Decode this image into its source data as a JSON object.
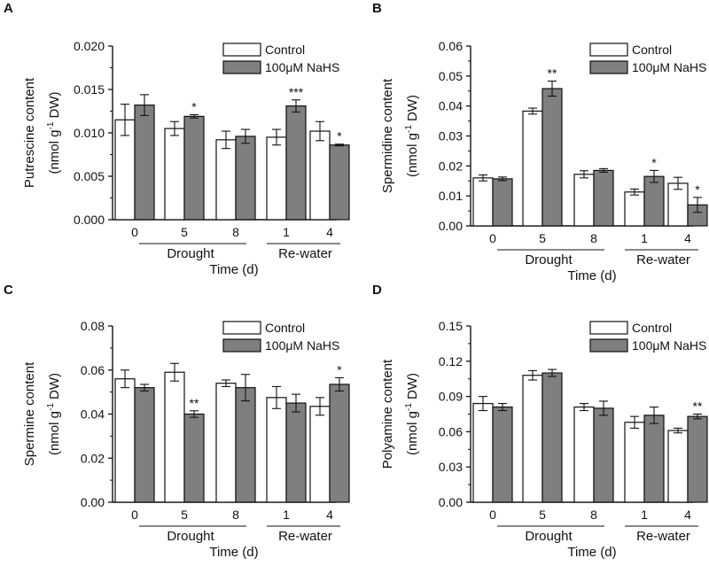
{
  "colors": {
    "control": "#ffffff",
    "nahs": "#7f7f7f",
    "stroke": "#111111"
  },
  "chart_data": [
    {
      "type": "bar",
      "panel": "A",
      "ylabel_main": "Putrescine content",
      "ylabel_unit_a": "(nmol g",
      "ylabel_unit_sup": "-1",
      "ylabel_unit_b": " DW)",
      "ylim": [
        0,
        0.02
      ],
      "yticks": [
        "0.000",
        "0.005",
        "0.010",
        "0.015",
        "0.020"
      ],
      "categories": [
        "0",
        "5",
        "8",
        "1",
        "4"
      ],
      "groups": [
        "Drought",
        "Re-water"
      ],
      "xlabel": "Time (d)",
      "series": [
        {
          "name": "Control",
          "values": [
            0.0115,
            0.0105,
            0.0092,
            0.0095,
            0.0102
          ],
          "errors": [
            0.0018,
            0.0008,
            0.001,
            0.0009,
            0.0011
          ],
          "stars": [
            "",
            "",
            "",
            "",
            ""
          ]
        },
        {
          "name": "100μM NaHS",
          "values": [
            0.0132,
            0.0119,
            0.0096,
            0.0131,
            0.0086
          ],
          "errors": [
            0.0012,
            0.0002,
            0.0008,
            0.0007,
            0.0001
          ],
          "stars": [
            "",
            "*",
            "",
            "***",
            "*"
          ]
        }
      ]
    },
    {
      "type": "bar",
      "panel": "B",
      "ylabel_main": "Spermidine content",
      "ylabel_unit_a": "(nmol g",
      "ylabel_unit_sup": "-1",
      "ylabel_unit_b": " DW)",
      "ylim": [
        0,
        0.06
      ],
      "yticks": [
        "0.00",
        "0.01",
        "0.02",
        "0.03",
        "0.04",
        "0.05",
        "0.06"
      ],
      "categories": [
        "0",
        "5",
        "8",
        "1",
        "4"
      ],
      "groups": [
        "Drought",
        "Re-water"
      ],
      "xlabel": "Time (d)",
      "series": [
        {
          "name": "Control",
          "values": [
            0.016,
            0.0383,
            0.0172,
            0.0113,
            0.0142
          ],
          "errors": [
            0.001,
            0.001,
            0.0012,
            0.001,
            0.002
          ],
          "stars": [
            "",
            "",
            "",
            "",
            ""
          ]
        },
        {
          "name": "100μM NaHS",
          "values": [
            0.0157,
            0.0458,
            0.0185,
            0.0165,
            0.007
          ],
          "errors": [
            0.0006,
            0.0025,
            0.0006,
            0.002,
            0.0025
          ],
          "stars": [
            "",
            "**",
            "",
            "*",
            "*"
          ]
        }
      ]
    },
    {
      "type": "bar",
      "panel": "C",
      "ylabel_main": "Spermine content",
      "ylabel_unit_a": "(nmol g",
      "ylabel_unit_sup": "-1",
      "ylabel_unit_b": " DW)",
      "ylim": [
        0,
        0.08
      ],
      "yticks": [
        "0.00",
        "0.02",
        "0.04",
        "0.06",
        "0.08"
      ],
      "categories": [
        "0",
        "5",
        "8",
        "1",
        "4"
      ],
      "groups": [
        "Drought",
        "Re-water"
      ],
      "xlabel": "Time (d)",
      "series": [
        {
          "name": "Control",
          "values": [
            0.056,
            0.059,
            0.054,
            0.0475,
            0.0435
          ],
          "errors": [
            0.004,
            0.004,
            0.0015,
            0.005,
            0.004
          ],
          "stars": [
            "",
            "",
            "",
            "",
            ""
          ]
        },
        {
          "name": "100μM NaHS",
          "values": [
            0.052,
            0.04,
            0.052,
            0.045,
            0.0535
          ],
          "errors": [
            0.0015,
            0.0015,
            0.006,
            0.004,
            0.003
          ],
          "stars": [
            "",
            "**",
            "",
            "",
            "*"
          ]
        }
      ]
    },
    {
      "type": "bar",
      "panel": "D",
      "ylabel_main": "Polyamine content",
      "ylabel_unit_a": "(nmol g",
      "ylabel_unit_sup": "-1",
      "ylabel_unit_b": " DW)",
      "ylim": [
        0,
        0.15
      ],
      "yticks": [
        "0.00",
        "0.03",
        "0.06",
        "0.09",
        "0.12",
        "0.15"
      ],
      "categories": [
        "0",
        "5",
        "8",
        "1",
        "4"
      ],
      "groups": [
        "Drought",
        "Re-water"
      ],
      "xlabel": "Time (d)",
      "series": [
        {
          "name": "Control",
          "values": [
            0.084,
            0.108,
            0.081,
            0.068,
            0.061
          ],
          "errors": [
            0.006,
            0.004,
            0.003,
            0.005,
            0.002
          ],
          "stars": [
            "",
            "",
            "",
            "",
            ""
          ]
        },
        {
          "name": "100μM NaHS",
          "values": [
            0.081,
            0.11,
            0.08,
            0.074,
            0.073
          ],
          "errors": [
            0.003,
            0.003,
            0.006,
            0.007,
            0.002
          ],
          "stars": [
            "",
            "",
            "",
            "",
            "**"
          ]
        }
      ]
    }
  ]
}
